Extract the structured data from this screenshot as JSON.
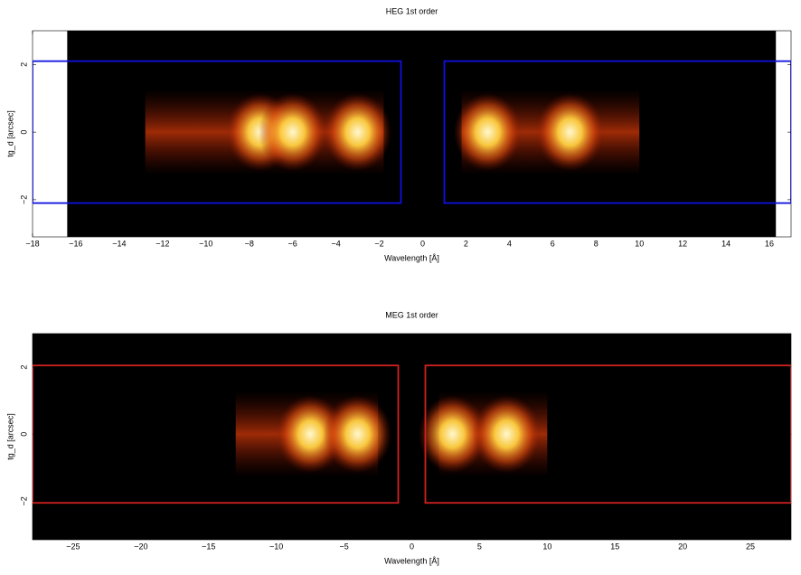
{
  "chart_data": [
    {
      "type": "heatmap",
      "title": "HEG 1st order",
      "x_label": "Wavelength [Å]",
      "y_label": "tg_d [arcsec]",
      "xlim": [
        -18,
        17
      ],
      "ylim": [
        -3.1,
        3
      ],
      "xticks": [
        {
          "value": -18,
          "label": "−18"
        },
        {
          "value": -16,
          "label": "−16"
        },
        {
          "value": -14,
          "label": "−14"
        },
        {
          "value": -12,
          "label": "−12"
        },
        {
          "value": -10,
          "label": "−10"
        },
        {
          "value": -8,
          "label": "−8"
        },
        {
          "value": -6,
          "label": "−6"
        },
        {
          "value": -4,
          "label": "−4"
        },
        {
          "value": -2,
          "label": "−2"
        },
        0,
        2,
        4,
        6,
        8,
        10,
        12,
        14,
        16
      ],
      "yticks": [
        {
          "value": -2,
          "label": "−2"
        },
        0,
        2
      ],
      "data_extent": [
        -16.4,
        16.3
      ],
      "emission_bands": [
        [
          -12.8,
          -1.8
        ],
        [
          1.8,
          10
        ]
      ],
      "emission_peaks": [
        -7.5,
        -6,
        -3,
        3,
        6.8
      ],
      "regions": [
        {
          "x": [
            -18,
            -1
          ],
          "y": [
            -2.1,
            2.1
          ]
        },
        {
          "x": [
            1,
            17
          ],
          "y": [
            -2.1,
            2.1
          ]
        }
      ],
      "region_color": "#1010e0"
    },
    {
      "type": "heatmap",
      "title": "MEG 1st order",
      "x_label": "Wavelength [Å]",
      "y_label": "tg_d [arcsec]",
      "xlim": [
        -28,
        28
      ],
      "ylim": [
        -3.15,
        3
      ],
      "xticks": [
        {
          "value": -25,
          "label": "−25"
        },
        {
          "value": -20,
          "label": "−20"
        },
        {
          "value": -15,
          "label": "−15"
        },
        {
          "value": -10,
          "label": "−10"
        },
        {
          "value": -5,
          "label": "−5"
        },
        0,
        5,
        10,
        15,
        20,
        25
      ],
      "yticks": [
        {
          "value": -2,
          "label": "−2"
        },
        0,
        2
      ],
      "data_extent": [
        -28,
        28
      ],
      "emission_bands": [
        [
          -13,
          -2.5
        ],
        [
          2,
          10
        ]
      ],
      "emission_peaks": [
        -7.5,
        -4,
        3,
        7
      ],
      "regions": [
        {
          "x": [
            -28,
            -1
          ],
          "y": [
            -2.05,
            2.05
          ]
        },
        {
          "x": [
            1,
            28
          ],
          "y": [
            -2.05,
            2.05
          ]
        }
      ],
      "region_color": "#d02020"
    }
  ]
}
